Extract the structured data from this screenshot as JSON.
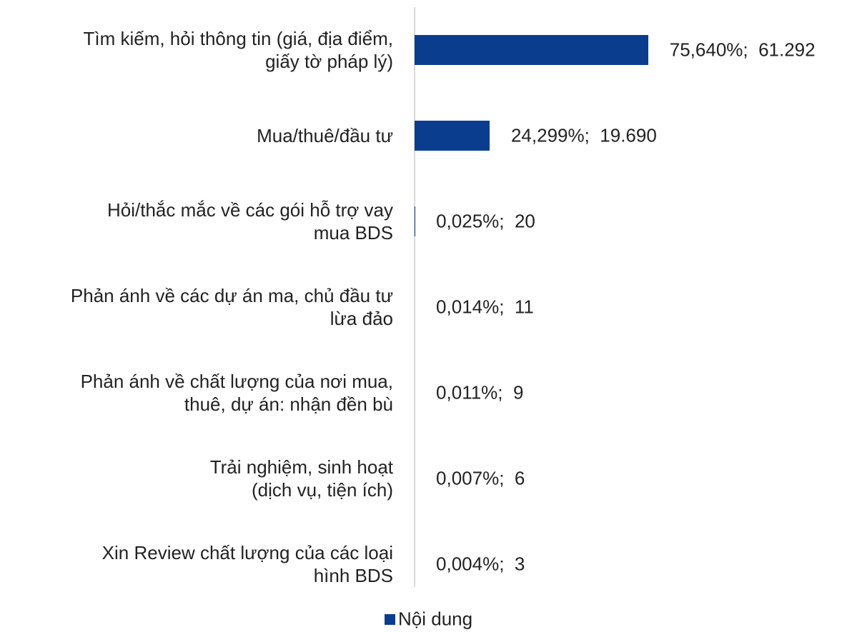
{
  "chart_data": {
    "type": "hbar",
    "categories": [
      "Tìm kiếm, hỏi thông tin (giá, địa điểm,\ngiấy tờ pháp lý)",
      "Mua/thuê/đầu tư",
      "Hỏi/thắc mắc về các gói hỗ trợ vay\nmua BDS",
      "Phản ánh về các dự án ma, chủ đầu tư\nlừa đảo",
      "Phản ánh về chất lượng của nơi mua,\nthuê, dự án: nhận đền bù",
      "Trải nghiệm, sinh hoạt\n(dịch vụ, tiện ích)",
      "Xin Review chất lượng của các loại\nhình BDS"
    ],
    "series": [
      {
        "name": "Nội dung",
        "color": "#0b3d8f",
        "values": [
          75.64,
          24.299,
          0.025,
          0.014,
          0.011,
          0.007,
          0.004
        ],
        "value_labels": [
          "75,640%;  61.292",
          "24,299%;  19.690",
          "0,025%;  20",
          "0,014%;  11",
          "0,011%;  9",
          "0,007%;  6",
          "0,004%;  3"
        ]
      }
    ],
    "legend": "bottom"
  }
}
